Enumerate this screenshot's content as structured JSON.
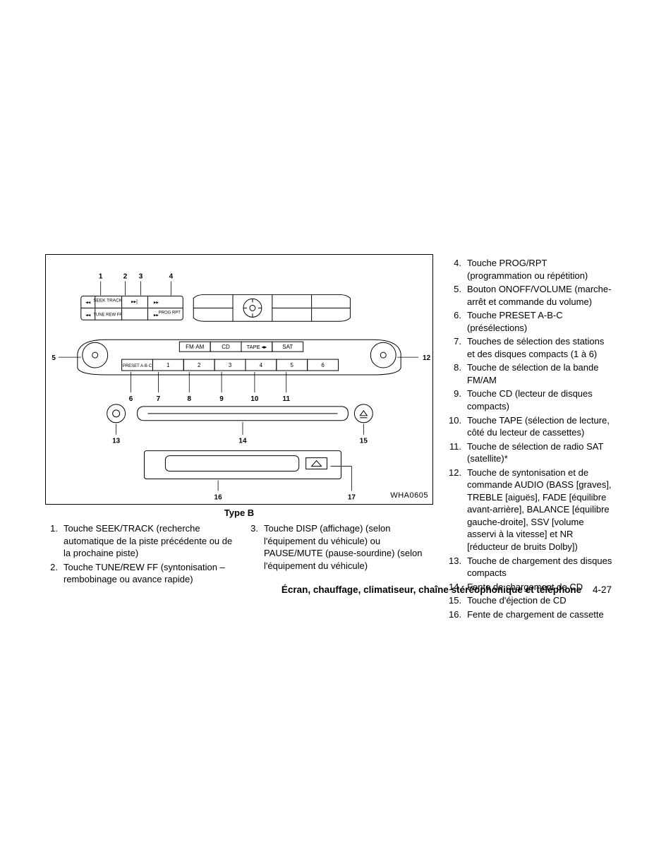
{
  "diagram": {
    "code": "WHA0605",
    "caption": "Type B",
    "topButtons": {
      "seekTrack": "SEEK TRACK",
      "tuneRewFf": "TUNE REW FF",
      "progRpt": "PROG RPT"
    },
    "radioRow": {
      "fmam": "FM·AM",
      "cd": "CD",
      "tape": "TAPE ◂▸",
      "sat": "SAT",
      "preset": "PRESET A·B·C",
      "nums": [
        "1",
        "2",
        "3",
        "4",
        "5",
        "6"
      ]
    },
    "callouts": {
      "1": "1",
      "2": "2",
      "3": "3",
      "4": "4",
      "5": "5",
      "6": "6",
      "7": "7",
      "8": "8",
      "9": "9",
      "10": "10",
      "11": "11",
      "12": "12",
      "13": "13",
      "14": "14",
      "15": "15",
      "16": "16",
      "17": "17"
    }
  },
  "legendLeft": [
    {
      "n": "1.",
      "t": "Touche SEEK/TRACK (recherche automatique de la piste précédente ou de la prochaine piste)"
    },
    {
      "n": "2.",
      "t": "Touche TUNE/REW FF (syntonisation – rembobinage ou avance rapide)"
    }
  ],
  "legendMid": [
    {
      "n": "3.",
      "t": "Touche DISP (affichage) (selon l'équipement du véhicule) ou PAUSE/MUTE (pause-sourdine) (selon l'équipement du véhicule)"
    }
  ],
  "legendRight": [
    {
      "n": "4.",
      "t": "Touche PROG/RPT (programmation ou répétition)"
    },
    {
      "n": "5.",
      "t": "Bouton ONOFF/VOLUME (marche-arrêt et commande du volume)"
    },
    {
      "n": "6.",
      "t": "Touche PRESET A-B-C (présélections)"
    },
    {
      "n": "7.",
      "t": "Touches de sélection des stations et des disques compacts (1 à 6)"
    },
    {
      "n": "8.",
      "t": "Touche de sélection de la bande FM/AM"
    },
    {
      "n": "9.",
      "t": "Touche CD (lecteur de disques compacts)"
    },
    {
      "n": "10.",
      "t": "Touche TAPE (sélection de lecture, côté du lecteur de cassettes)"
    },
    {
      "n": "11.",
      "t": "Touche de sélection de radio SAT (satellite)*"
    },
    {
      "n": "12.",
      "t": "Touche de syntonisation et de commande AUDIO (BASS [graves], TREBLE [aiguës], FADE [équilibre avant-arrière], BALANCE [équilibre gauche-droite], SSV [volume asservi à la vitesse] et NR [réducteur de bruits Dolby])"
    },
    {
      "n": "13.",
      "t": "Touche de chargement des disques compacts"
    },
    {
      "n": "14.",
      "t": "Fente de chargement de CD"
    },
    {
      "n": "15.",
      "t": "Touche d'éjection de CD"
    },
    {
      "n": "16.",
      "t": "Fente de chargement de cassette"
    }
  ],
  "footer": {
    "title": "Écran, chauffage, climatiseur, chaîne stéréophonique et téléphone",
    "page": "4-27"
  }
}
